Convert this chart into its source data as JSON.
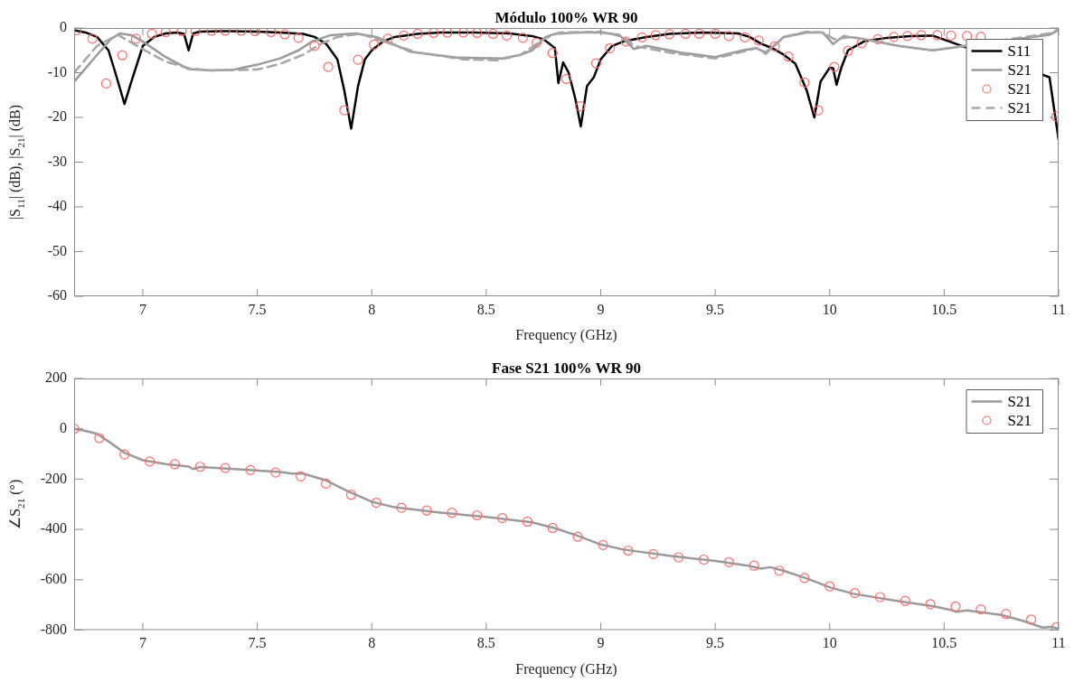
{
  "chart_data": [
    {
      "type": "line",
      "title": "Módulo 100% WR 90",
      "xlabel": "Frequency (GHz)",
      "ylabel": "|S$_{11}$| (dB), |S$_{21}$| (dB)",
      "xlim": [
        6.7,
        11
      ],
      "xticks": [
        7,
        7.5,
        8,
        8.5,
        9,
        9.5,
        10,
        10.5,
        11
      ],
      "ylim": [
        -60,
        0
      ],
      "yticks": [
        -60,
        -50,
        -40,
        -30,
        -20,
        -10,
        0
      ],
      "grid": false,
      "legend": "top right",
      "series": [
        {
          "name": "S11",
          "color": "#000000",
          "marker": "none",
          "line_style": "solid",
          "x": [
            6.7,
            6.75,
            6.8,
            6.85,
            6.88,
            6.92,
            6.95,
            7.0,
            7.05,
            7.1,
            7.15,
            7.18,
            7.2,
            7.22,
            7.25,
            7.35,
            7.5,
            7.6,
            7.7,
            7.75,
            7.8,
            7.85,
            7.88,
            7.91,
            7.94,
            7.97,
            8.0,
            8.05,
            8.1,
            8.2,
            8.3,
            8.45,
            8.6,
            8.7,
            8.75,
            8.8,
            8.815,
            8.836,
            8.86,
            8.89,
            8.913,
            8.94,
            8.97,
            9.0,
            9.05,
            9.1,
            9.2,
            9.3,
            9.45,
            9.6,
            9.65,
            9.7,
            9.75,
            9.8,
            9.85,
            9.9,
            9.933,
            9.96,
            10.0,
            10.015,
            10.03,
            10.05,
            10.08,
            10.15,
            10.25,
            10.35,
            10.45,
            10.96,
            11.0
          ],
          "values": [
            -0.5,
            -1,
            -2,
            -5,
            -10,
            -17,
            -12,
            -4,
            -2,
            -1.2,
            -1,
            -1.3,
            -5,
            -1.2,
            -0.8,
            -0.7,
            -0.8,
            -1,
            -1.3,
            -2,
            -3.5,
            -7,
            -14,
            -22.5,
            -13,
            -7,
            -5,
            -3,
            -2,
            -1.3,
            -1,
            -1,
            -1.2,
            -1.8,
            -2.5,
            -4.5,
            -12.3,
            -7.7,
            -10,
            -16,
            -22,
            -13,
            -11,
            -7,
            -4,
            -3,
            -2,
            -1.3,
            -1,
            -1.2,
            -2,
            -3.5,
            -4.5,
            -6,
            -8,
            -14,
            -20,
            -12,
            -8.9,
            -9,
            -12.7,
            -9,
            -5,
            -3,
            -2.2,
            -1.8,
            -1.7,
            -11,
            -25
          ]
        },
        {
          "name": "S21",
          "color": "#9a9a9a",
          "marker": "none",
          "line_style": "solid",
          "x": [
            6.7,
            6.8,
            6.86,
            6.9,
            6.95,
            7.0,
            7.1,
            7.2,
            7.3,
            7.4,
            7.5,
            7.6,
            7.68,
            7.74,
            7.82,
            7.93,
            8.02,
            8.17,
            8.37,
            8.57,
            8.65,
            8.7,
            8.76,
            8.8,
            8.9,
            9.0,
            9.08,
            9.145,
            9.2,
            9.35,
            9.5,
            9.62,
            9.68,
            9.72,
            9.8,
            9.9,
            9.97,
            10.015,
            10.06,
            10.15,
            10.3,
            10.45,
            10.96,
            11.0
          ],
          "values": [
            -12,
            -6,
            -2.5,
            -1.2,
            -1.6,
            -3,
            -6.5,
            -9.2,
            -9.5,
            -9.3,
            -8.2,
            -6.8,
            -5,
            -3,
            -1.6,
            -1.2,
            -2,
            -5.3,
            -6.6,
            -6.8,
            -6,
            -5,
            -2,
            -1.3,
            -1,
            -1,
            -1.5,
            -4.7,
            -4,
            -5.5,
            -6.5,
            -5,
            -4.5,
            -5.5,
            -2,
            -1,
            -1,
            -3.6,
            -1.8,
            -2.5,
            -4,
            -5,
            -1.5,
            -0.5
          ]
        },
        {
          "name": "S21",
          "type": "scatter",
          "color": "#ff6b6b",
          "marker": "circle",
          "x": [
            6.71,
            6.78,
            6.84,
            6.91,
            6.97,
            7.04,
            7.1,
            7.17,
            7.23,
            7.3,
            7.36,
            7.43,
            7.49,
            7.56,
            7.62,
            7.68,
            7.75,
            7.81,
            7.88,
            7.94,
            8.01,
            8.07,
            8.14,
            8.2,
            8.27,
            8.33,
            8.4,
            8.46,
            8.53,
            8.59,
            8.66,
            8.72,
            8.79,
            8.85,
            8.91,
            8.98,
            9.04,
            9.11,
            9.18,
            9.24,
            9.3,
            9.37,
            9.43,
            9.5,
            9.56,
            9.63,
            9.69,
            9.76,
            9.82,
            9.89,
            9.95,
            10.02,
            10.08,
            10.14,
            10.21,
            10.28,
            10.34,
            10.4,
            10.47,
            10.53,
            10.6,
            10.66,
            10.73,
            10.79,
            10.86,
            10.92,
            10.99
          ],
          "values": [
            -0.5,
            -2.4,
            -12.4,
            -6.1,
            -2.4,
            -1.3,
            -0.9,
            -0.7,
            -0.7,
            -0.6,
            -0.6,
            -0.6,
            -0.7,
            -0.9,
            -1.4,
            -2.2,
            -4,
            -8.7,
            -18.4,
            -7.1,
            -3.7,
            -2.4,
            -1.7,
            -1.3,
            -1.1,
            -1,
            -1,
            -1.1,
            -1.3,
            -1.7,
            -2.2,
            -3.3,
            -5.6,
            -11.4,
            -17.5,
            -7.9,
            -4.5,
            -3,
            -2.1,
            -1.6,
            -1.4,
            -1.3,
            -1.3,
            -1.3,
            -1.8,
            -2.1,
            -2.8,
            -4.1,
            -6.4,
            -12.2,
            -18.4,
            -8.7,
            -5.1,
            -3.4,
            -2.5,
            -2,
            -1.8,
            -1.6,
            -1.6,
            -1.7,
            -1.8,
            -2,
            null,
            null,
            null,
            null,
            -19.8
          ]
        },
        {
          "name": "S21",
          "color": "#a6a6a6",
          "marker": "none",
          "line_style": "dashed",
          "x": [
            6.7,
            6.8,
            6.89,
            7.02,
            7.1,
            7.2,
            7.3,
            7.5,
            7.6,
            7.7,
            7.78,
            7.85,
            7.95,
            8.05,
            8.2,
            8.4,
            8.55,
            8.65,
            8.75,
            8.82,
            9.0,
            9.1,
            9.145,
            9.3,
            9.5,
            9.62,
            9.68,
            9.72,
            9.8,
            9.9,
            9.97,
            10.02,
            10.1,
            10.3,
            10.45,
            10.96,
            11.0
          ],
          "values": [
            -10,
            -4,
            -1.5,
            -5.3,
            -7.5,
            -9,
            -9.5,
            -9.3,
            -8,
            -6,
            -3.5,
            -2,
            -1.3,
            -3,
            -5.5,
            -7,
            -7.2,
            -6,
            -2.5,
            -1,
            -0.8,
            -2,
            -4,
            -5.5,
            -6.8,
            -5.3,
            -4.5,
            -5.8,
            -2,
            -0.8,
            -1,
            -2.5,
            -2,
            -4,
            -5,
            -1.2,
            -0.3
          ]
        }
      ]
    },
    {
      "type": "line",
      "title": "Fase S21 100% WR 90",
      "xlabel": "Frequency (GHz)",
      "ylabel": "∠S$_{21}$ (°)",
      "xlim": [
        6.7,
        11
      ],
      "xticks": [
        7,
        7.5,
        8,
        8.5,
        9,
        9.5,
        10,
        10.5,
        11
      ],
      "ylim": [
        -800,
        200
      ],
      "yticks": [
        -800,
        -600,
        -400,
        -200,
        0,
        200
      ],
      "grid": false,
      "legend": "top right",
      "series": [
        {
          "name": "S21",
          "color": "#9a9a9a",
          "marker": "none",
          "line_style": "solid",
          "x": [
            6.7,
            6.75,
            6.8,
            6.85,
            6.92,
            7.0,
            7.1,
            7.2,
            7.22,
            7.25,
            7.4,
            7.6,
            7.65,
            7.7,
            7.8,
            7.9,
            8.0,
            8.1,
            8.3,
            8.5,
            8.7,
            8.8,
            8.9,
            9.0,
            9.1,
            9.3,
            9.5,
            9.65,
            9.7,
            9.74,
            9.8,
            9.9,
            10.0,
            10.1,
            10.3,
            10.45,
            10.53,
            10.55,
            10.6,
            10.75,
            10.85,
            10.93,
            10.97,
            11.0
          ],
          "values": [
            0,
            -8,
            -20,
            -50,
            -95,
            -125,
            -140,
            -150,
            -160,
            -152,
            -160,
            -172,
            -178,
            -178,
            -205,
            -250,
            -290,
            -312,
            -333,
            -350,
            -372,
            -395,
            -425,
            -460,
            -480,
            -505,
            -525,
            -545,
            -556,
            -550,
            -565,
            -595,
            -630,
            -655,
            -685,
            -705,
            -720,
            -727,
            -722,
            -740,
            -765,
            -790,
            -787,
            -795
          ]
        },
        {
          "name": "S21",
          "type": "scatter",
          "color": "#ff6b6b",
          "marker": "circle",
          "x": [
            6.7,
            6.81,
            6.92,
            7.03,
            7.14,
            7.25,
            7.36,
            7.47,
            7.58,
            7.69,
            7.8,
            7.91,
            8.02,
            8.13,
            8.24,
            8.35,
            8.46,
            8.57,
            8.68,
            8.79,
            8.9,
            9.01,
            9.12,
            9.23,
            9.34,
            9.45,
            9.56,
            9.67,
            9.78,
            9.89,
            10,
            10.11,
            10.22,
            10.33,
            10.44,
            10.55,
            10.66,
            10.77,
            10.88,
            10.99
          ],
          "values": [
            0,
            -37,
            -102,
            -130,
            -141,
            -151,
            -156,
            -164,
            -174,
            -189,
            -218,
            -262,
            -294,
            -314,
            -325,
            -334,
            -344,
            -355,
            -369,
            -394,
            -429,
            -462,
            -484,
            -498,
            -511,
            -520,
            -530,
            -544,
            -564,
            -593,
            -626,
            -653,
            -669,
            -684,
            -697,
            -706,
            -718,
            -736,
            -758,
            -789
          ]
        }
      ]
    }
  ]
}
